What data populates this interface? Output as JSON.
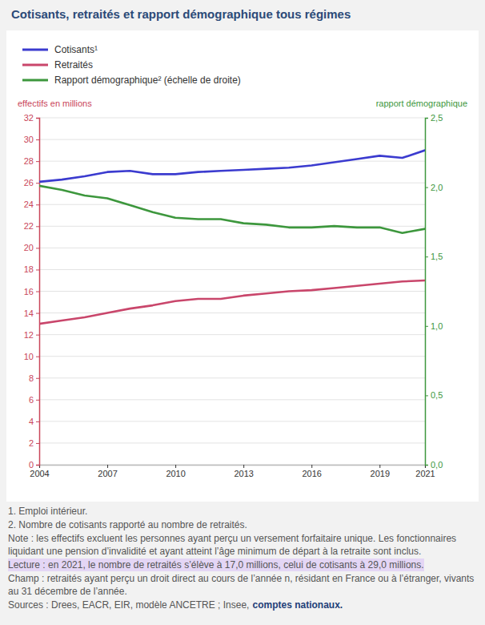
{
  "chart_data": {
    "type": "line",
    "title": "Cotisants, retraités et rapport démographique tous régimes",
    "ylabel": "effectifs en millions",
    "y2label": "rapport démographique",
    "x": [
      2004,
      2005,
      2006,
      2007,
      2008,
      2009,
      2010,
      2011,
      2012,
      2013,
      2014,
      2015,
      2016,
      2017,
      2018,
      2019,
      2020,
      2021
    ],
    "xlim": [
      2004,
      2021
    ],
    "xticks": [
      2004,
      2007,
      2010,
      2013,
      2016,
      2019,
      2021
    ],
    "ylim": [
      0,
      32
    ],
    "yticks": [
      0,
      2,
      4,
      6,
      8,
      10,
      12,
      14,
      16,
      18,
      20,
      22,
      24,
      26,
      28,
      30,
      32
    ],
    "y2lim": [
      0,
      2.5
    ],
    "y2ticks": [
      {
        "value": 0,
        "label": "0,0"
      },
      {
        "value": 0.5,
        "label": "0,5"
      },
      {
        "value": 1,
        "label": "1,0"
      },
      {
        "value": 1.5,
        "label": "1,5"
      },
      {
        "value": 2,
        "label": "2,0"
      },
      {
        "value": 2.5,
        "label": "2,5"
      }
    ],
    "grid": true,
    "legend": "top-left",
    "series": [
      {
        "name": "Cotisants¹",
        "color": "#3b3bcf",
        "values": [
          26.1,
          26.3,
          26.6,
          27.0,
          27.1,
          26.8,
          26.8,
          27.0,
          27.1,
          27.2,
          27.3,
          27.4,
          27.6,
          27.9,
          28.2,
          28.5,
          28.3,
          29.0
        ]
      },
      {
        "name": "Retraités",
        "color": "#c9466b",
        "values": [
          13.0,
          13.3,
          13.6,
          14.0,
          14.4,
          14.7,
          15.1,
          15.3,
          15.3,
          15.6,
          15.8,
          16.0,
          16.1,
          16.3,
          16.5,
          16.7,
          16.9,
          17.0
        ]
      },
      {
        "name": "Rapport démographique² (échelle de droite)",
        "color": "#3d973d",
        "axis": "y2",
        "values": [
          2.01,
          1.98,
          1.94,
          1.92,
          1.87,
          1.82,
          1.78,
          1.77,
          1.77,
          1.74,
          1.73,
          1.71,
          1.71,
          1.72,
          1.71,
          1.71,
          1.67,
          1.7
        ]
      }
    ],
    "footnotes": [
      "1. Emploi intérieur.",
      "2. Nombre de cotisants rapporté au nombre de retraités."
    ],
    "note": "Note : les effectifs excluent les personnes ayant perçu un versement forfaitaire unique. Les fonctionnaires liquidant une pension d’invalidité et ayant atteint l’âge minimum de départ à la retraite sont inclus.",
    "reading": "Lecture : en 2021, le nombre de retraités s’élève à 17,0 millions, celui de cotisants à 29,0 millions.",
    "scope": "Champ : retraités ayant perçu un droit direct au cours de l’année n, résidant en France ou à l’étranger, vivants au 31 décembre de l’année.",
    "sources": [
      "Sources : Drees, EACR, EIR, modèle ANCETRE ; Insee,",
      "comptes nationaux."
    ]
  }
}
